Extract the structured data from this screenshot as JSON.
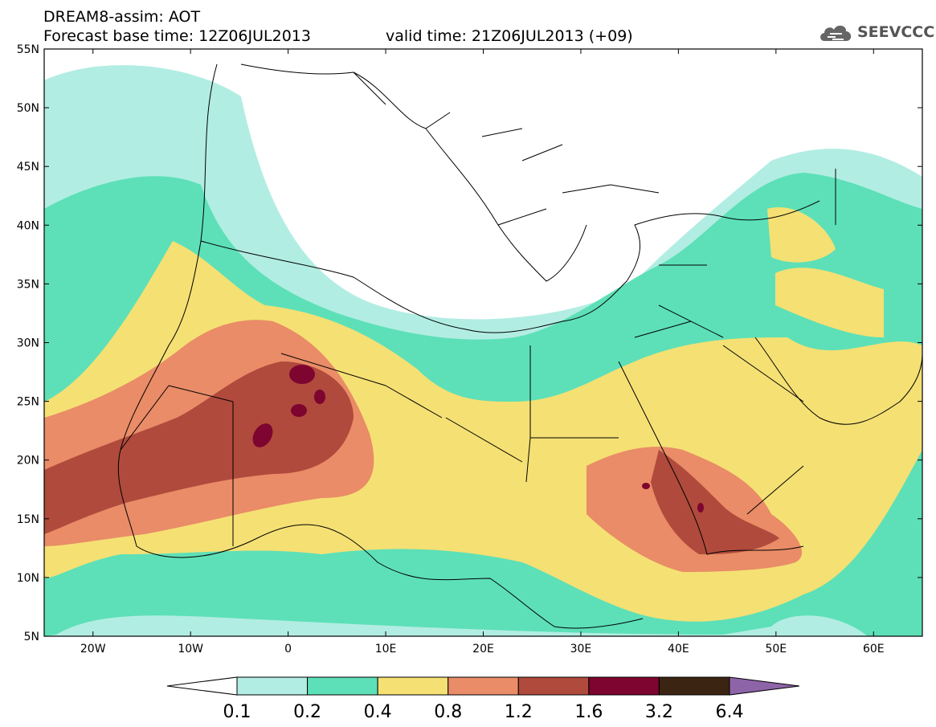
{
  "header": {
    "line1": "DREAM8-assim: AOT",
    "line2": "Forecast base time: 12Z06JUL2013",
    "line3": "valid time: 21Z06JUL2013 (+09)",
    "logo_text": "SEEVCCC",
    "logo_icon": "cloud-icon"
  },
  "map": {
    "lon_range": [
      -25,
      65
    ],
    "lat_range": [
      5,
      55
    ],
    "lat_labels": [
      "55N",
      "50N",
      "45N",
      "40N",
      "35N",
      "30N",
      "25N",
      "20N",
      "15N",
      "10N",
      "5N"
    ],
    "lon_labels": [
      "20W",
      "10W",
      "0",
      "10E",
      "20E",
      "30E",
      "40E",
      "50E",
      "60E"
    ]
  },
  "colorbar": {
    "levels": [
      "0.1",
      "0.2",
      "0.4",
      "0.8",
      "1.2",
      "1.6",
      "3.2",
      "6.4"
    ],
    "colors": [
      "#ffffff",
      "#b2ede3",
      "#5de0b7",
      "#f5e074",
      "#e98c67",
      "#b04a3c",
      "#7d0530",
      "#3b2412",
      "#8e64a8"
    ]
  }
}
